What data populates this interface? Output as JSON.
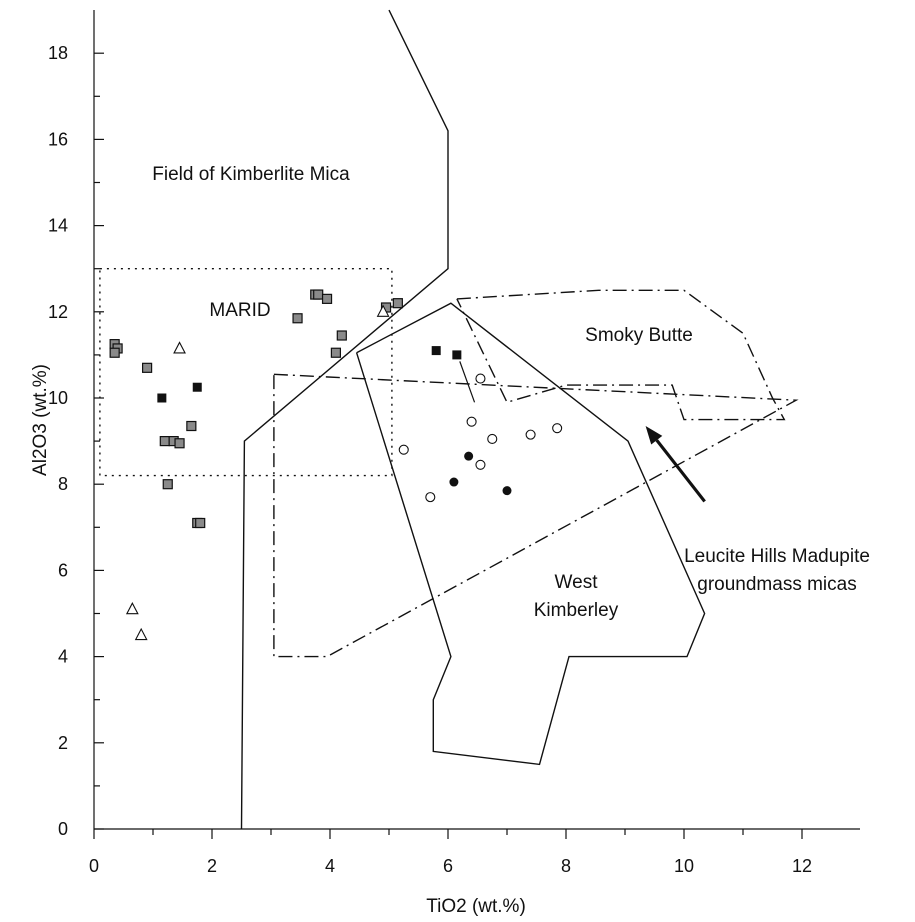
{
  "chart_data": {
    "type": "scatter",
    "title": "",
    "xlabel": "TiO2 (wt.%)",
    "ylabel": "Al2O3 (wt.%)",
    "xlim": [
      0,
      13
    ],
    "ylim": [
      0,
      19
    ],
    "x_ticks": [
      0,
      2,
      4,
      6,
      8,
      10,
      12
    ],
    "y_ticks": [
      0,
      2,
      4,
      6,
      8,
      10,
      12,
      14,
      16,
      18
    ],
    "grid": false,
    "colors": {
      "ink": "#111111",
      "hatched_fill": "#8a8a8a"
    },
    "fields": [
      {
        "name": "Field of Kimberlite Mica",
        "style": "solid",
        "label_at": [
          2.5,
          15.6
        ],
        "points": [
          [
            5.0,
            19.0
          ],
          [
            6.0,
            16.2
          ],
          [
            6.0,
            13.0
          ],
          [
            2.55,
            9.0
          ],
          [
            2.5,
            0.0
          ]
        ]
      },
      {
        "name": "MARID",
        "style": "dotted",
        "label_at": [
          3.0,
          12.0
        ],
        "points": [
          [
            0.1,
            13.0
          ],
          [
            5.05,
            13.0
          ],
          [
            5.05,
            8.2
          ],
          [
            0.1,
            8.2
          ]
        ]
      },
      {
        "name": "West Kimberley",
        "style": "solid",
        "label_at": [
          8.9,
          5.2
        ],
        "points": [
          [
            4.45,
            11.05
          ],
          [
            6.05,
            12.2
          ],
          [
            9.05,
            9.0
          ],
          [
            10.35,
            5.0
          ],
          [
            10.05,
            4.0
          ],
          [
            9.85,
            4.0
          ],
          [
            8.05,
            4.0
          ],
          [
            7.55,
            1.5
          ],
          [
            5.75,
            1.8
          ],
          [
            5.75,
            3.0
          ],
          [
            6.05,
            4.0
          ],
          [
            4.45,
            11.05
          ]
        ]
      },
      {
        "name": "Smoky Butte",
        "style": "dashdot",
        "label_at": [
          10.0,
          11.5
        ],
        "points": [
          [
            6.15,
            12.3
          ],
          [
            8.55,
            12.5
          ],
          [
            10.0,
            12.5
          ],
          [
            11.0,
            11.5
          ],
          [
            11.5,
            10.0
          ],
          [
            11.7,
            9.5
          ],
          [
            10.0,
            9.5
          ],
          [
            9.8,
            10.3
          ],
          [
            8.0,
            10.3
          ],
          [
            7.0,
            9.9
          ],
          [
            6.15,
            12.3
          ]
        ]
      },
      {
        "name": "Leucite Hills Madupite groundmass micas",
        "style": "dashdot",
        "label_at": [
          10.9,
          6.4
        ],
        "points": [
          [
            3.05,
            10.55
          ],
          [
            11.9,
            9.95
          ],
          [
            3.95,
            4.0
          ],
          [
            3.05,
            4.0
          ],
          [
            3.05,
            10.55
          ]
        ]
      }
    ],
    "annotations": [
      {
        "text": "Leucite Hills Madupite",
        "line": 1
      },
      {
        "text": "groundmass micas",
        "line": 2
      }
    ],
    "arrow": {
      "from": [
        10.35,
        7.6
      ],
      "to": [
        9.35,
        9.35
      ]
    },
    "leader": {
      "from": [
        6.2,
        10.85
      ],
      "to": [
        6.45,
        9.9
      ]
    },
    "series": [
      {
        "marker": "hatched-square",
        "points": [
          [
            0.35,
            11.25
          ],
          [
            0.4,
            11.15
          ],
          [
            0.35,
            11.05
          ],
          [
            0.9,
            10.7
          ],
          [
            1.2,
            9.0
          ],
          [
            1.35,
            9.0
          ],
          [
            1.45,
            8.95
          ],
          [
            1.65,
            9.35
          ],
          [
            1.25,
            8.0
          ],
          [
            1.75,
            7.1
          ],
          [
            1.8,
            7.1
          ],
          [
            3.45,
            11.85
          ],
          [
            3.75,
            12.4
          ],
          [
            3.8,
            12.4
          ],
          [
            3.95,
            12.3
          ],
          [
            4.1,
            11.05
          ],
          [
            4.2,
            11.45
          ],
          [
            4.95,
            12.1
          ],
          [
            5.15,
            12.2
          ]
        ]
      },
      {
        "marker": "filled-square",
        "points": [
          [
            1.15,
            10.0
          ],
          [
            1.75,
            10.25
          ],
          [
            5.8,
            11.1
          ],
          [
            6.15,
            11.0
          ]
        ]
      },
      {
        "marker": "open-triangle",
        "points": [
          [
            1.45,
            11.15
          ],
          [
            0.65,
            5.1
          ],
          [
            0.8,
            4.5
          ],
          [
            4.9,
            12.0
          ]
        ]
      },
      {
        "marker": "open-circle",
        "points": [
          [
            6.55,
            10.45
          ],
          [
            6.4,
            9.45
          ],
          [
            6.75,
            9.05
          ],
          [
            5.25,
            8.8
          ],
          [
            6.55,
            8.45
          ],
          [
            7.4,
            9.15
          ],
          [
            7.85,
            9.3
          ],
          [
            5.7,
            7.7
          ]
        ]
      },
      {
        "marker": "filled-circle",
        "points": [
          [
            6.35,
            8.65
          ],
          [
            6.1,
            8.05
          ],
          [
            7.0,
            7.85
          ]
        ]
      }
    ]
  }
}
